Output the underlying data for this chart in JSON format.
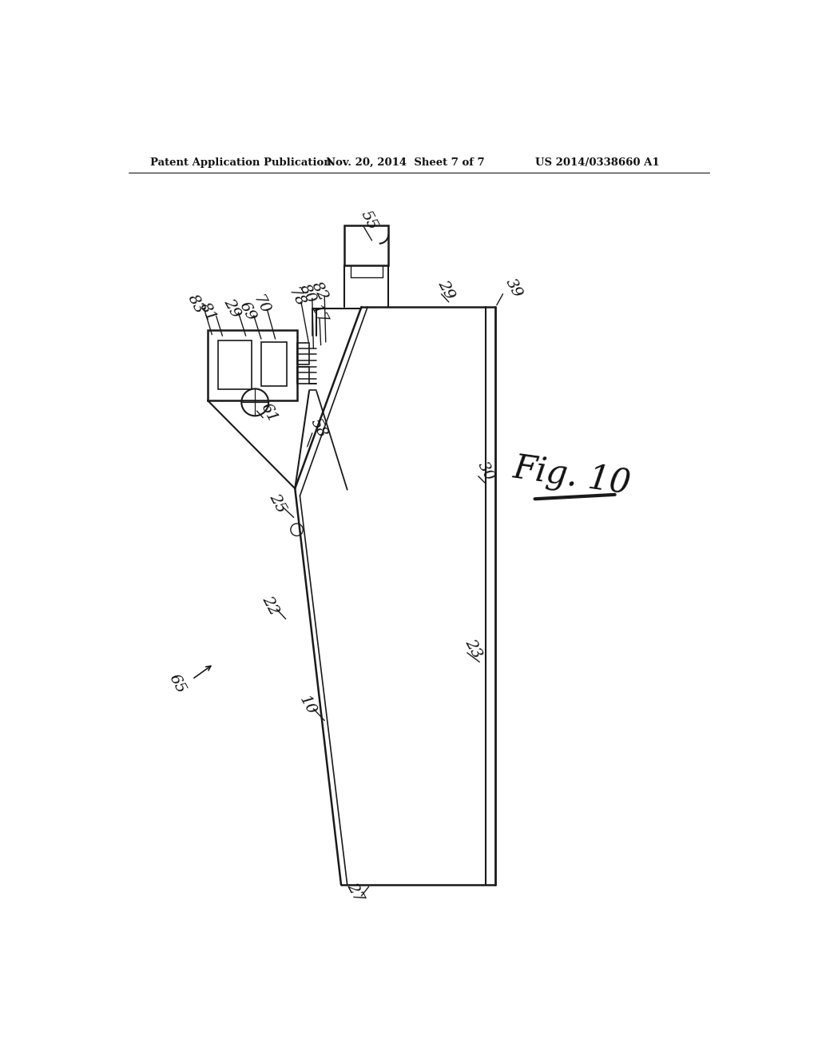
{
  "bg_color": "#ffffff",
  "line_color": "#1a1a1a",
  "header_text1": "Patent Application Publication",
  "header_text2": "Nov. 20, 2014  Sheet 7 of 7",
  "header_text3": "US 2014/0338660 A1",
  "fig_label": "Fig. 10"
}
